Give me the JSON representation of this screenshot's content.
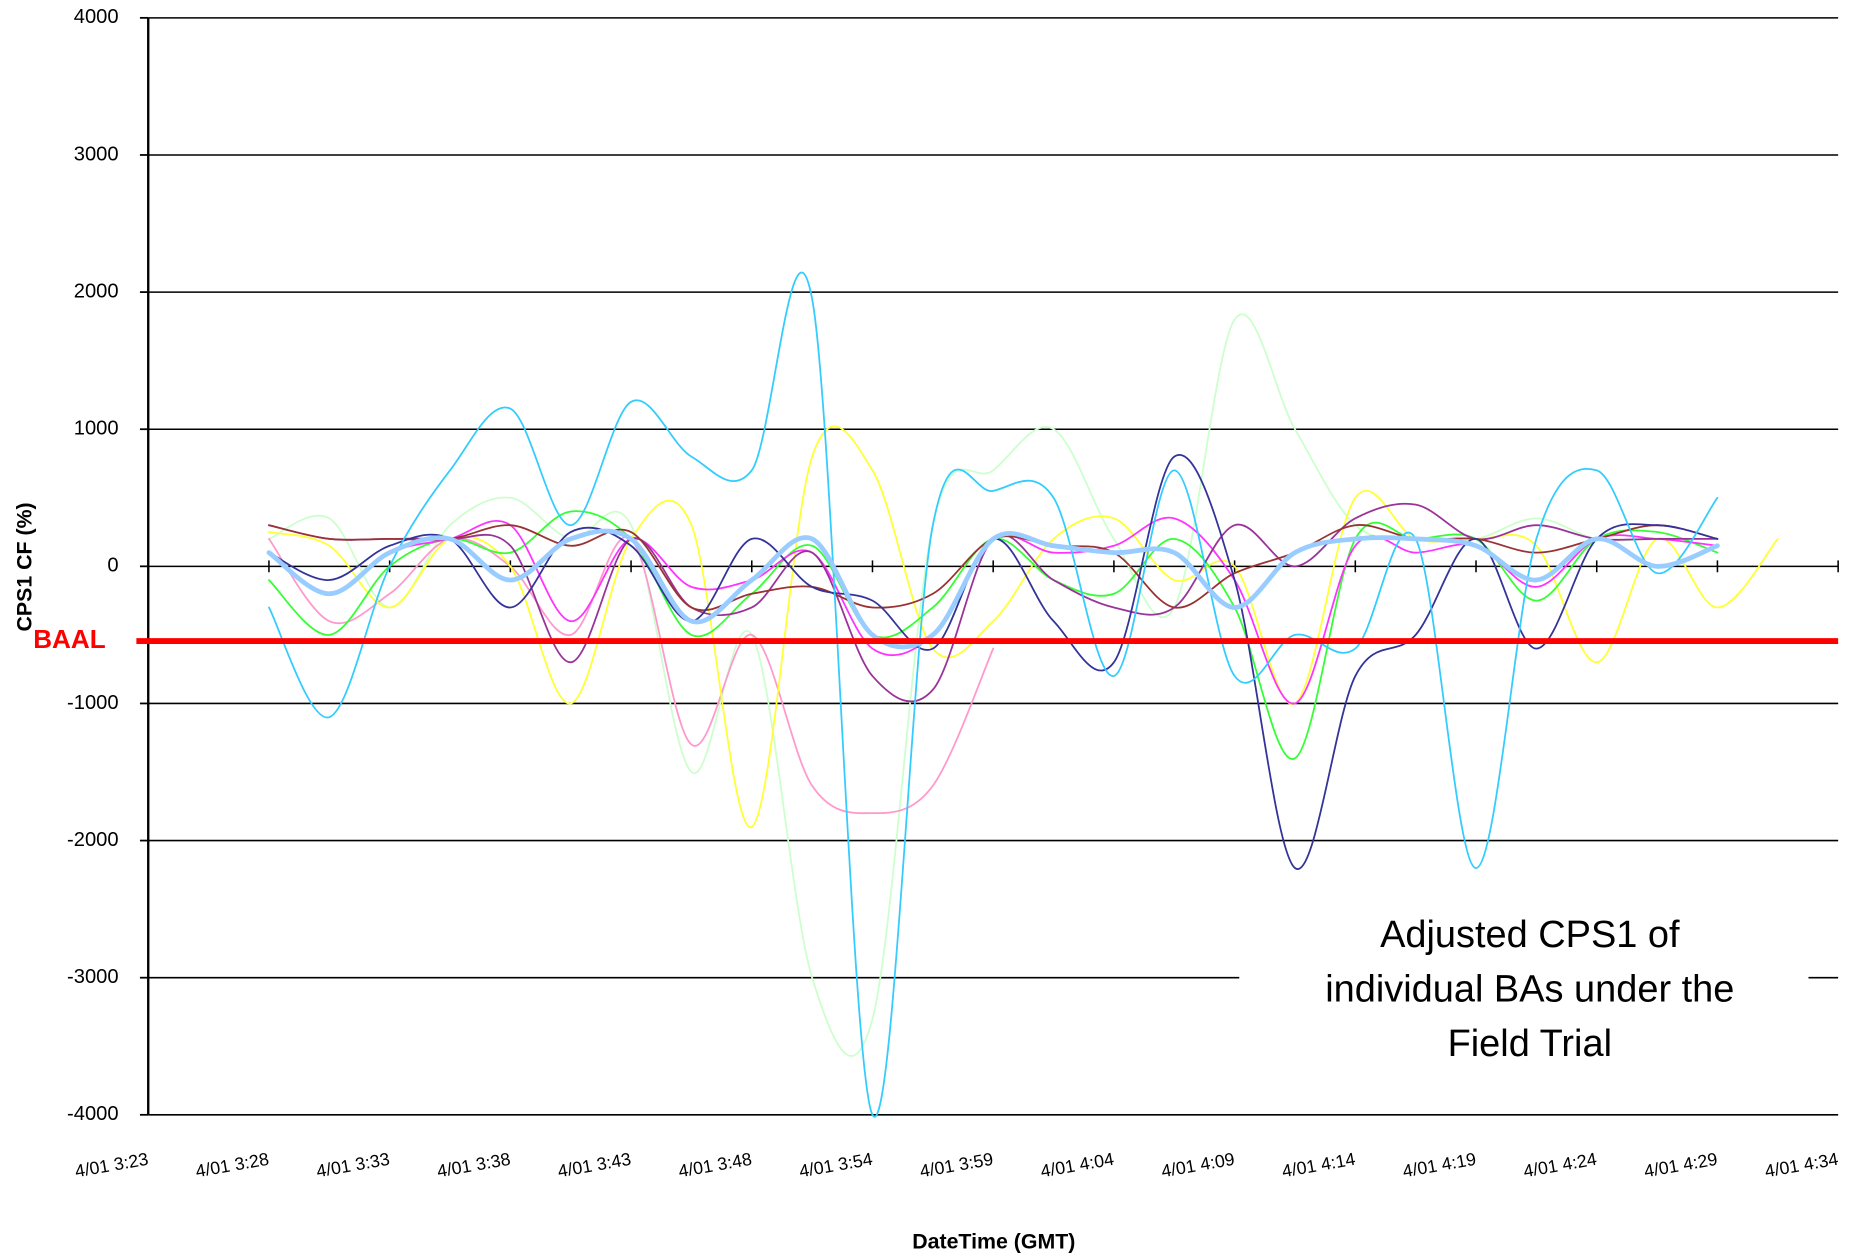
{
  "chart_data": {
    "type": "line",
    "x_label": "DateTime (GMT)",
    "y_label": "CPS1 CF (%)",
    "categories": [
      "4/01 3:23",
      null,
      "4/01 3:28",
      null,
      "4/01 3:33",
      null,
      "4/01 3:38",
      null,
      "4/01 3:43",
      null,
      "4/01 3:48",
      null,
      "4/01 3:54",
      null,
      "4/01 3:59",
      null,
      "4/01 4:04",
      null,
      "4/01 4:09",
      null,
      "4/01 4:14",
      null,
      "4/01 4:19",
      null,
      "4/01 4:24",
      null,
      "4/01 4:29",
      null,
      "4/01 4:34"
    ],
    "ylim": [
      -4000,
      4000
    ],
    "yticks": [
      -4000,
      -3000,
      -2000,
      -1000,
      0,
      1000,
      2000,
      3000,
      4000
    ],
    "grid": true,
    "series": [
      {
        "color": "#ccffcc",
        "width": 1.5,
        "values": [
          null,
          null,
          200,
          350,
          -300,
          300,
          500,
          200,
          300,
          -1500,
          -500,
          -3000,
          -3300,
          300,
          700,
          1000,
          200,
          -300,
          1800,
          1000,
          300,
          200,
          200,
          350,
          200,
          200,
          200,
          null,
          null
        ]
      },
      {
        "color": "#ff99cc",
        "width": 1.5,
        "values": [
          null,
          null,
          200,
          -400,
          -200,
          200,
          0,
          -500,
          200,
          -1300,
          -500,
          -1600,
          -1800,
          -1600,
          -600,
          null,
          null,
          null,
          null,
          null,
          null,
          null,
          null,
          null,
          null,
          null,
          null,
          null,
          null
        ]
      },
      {
        "color": "#ffff33",
        "width": 1.5,
        "values": [
          null,
          null,
          250,
          150,
          -300,
          200,
          0,
          -1000,
          200,
          300,
          -1900,
          800,
          700,
          -600,
          -400,
          200,
          350,
          -100,
          0,
          -1000,
          500,
          200,
          200,
          150,
          -700,
          200,
          -300,
          200,
          null
        ]
      },
      {
        "color": "#33ff33",
        "width": 1.5,
        "values": [
          null,
          null,
          -100,
          -500,
          0,
          200,
          100,
          400,
          200,
          -500,
          -200,
          150,
          -500,
          -300,
          200,
          -100,
          -200,
          200,
          -300,
          -1400,
          200,
          200,
          200,
          -250,
          200,
          250,
          100,
          null,
          null
        ]
      },
      {
        "color": "#ff33ff",
        "width": 1.5,
        "values": [
          null,
          null,
          100,
          -200,
          100,
          200,
          300,
          -400,
          200,
          -150,
          -100,
          100,
          -600,
          -500,
          200,
          100,
          150,
          350,
          -100,
          -1000,
          150,
          100,
          150,
          -150,
          200,
          200,
          150,
          null,
          null
        ]
      },
      {
        "color": "#993399",
        "width": 1.5,
        "values": [
          null,
          null,
          300,
          200,
          200,
          200,
          150,
          -700,
          200,
          -300,
          -300,
          100,
          -800,
          -900,
          200,
          -100,
          -300,
          -300,
          300,
          0,
          350,
          450,
          200,
          300,
          200,
          200,
          200,
          null,
          null
        ]
      },
      {
        "color": "#993333",
        "width": 1.5,
        "values": [
          null,
          null,
          300,
          200,
          200,
          200,
          300,
          150,
          250,
          -300,
          -200,
          -150,
          -300,
          -200,
          200,
          150,
          100,
          -300,
          -50,
          100,
          300,
          200,
          200,
          100,
          200,
          300,
          200,
          null,
          null
        ]
      },
      {
        "color": "#333399",
        "width": 1.5,
        "values": [
          null,
          null,
          100,
          -100,
          150,
          200,
          -300,
          250,
          150,
          -400,
          200,
          -150,
          -250,
          -600,
          200,
          -400,
          -700,
          800,
          -100,
          -2200,
          -800,
          -500,
          200,
          -600,
          200,
          300,
          200,
          null,
          null
        ]
      },
      {
        "color": "#33ccff",
        "width": 1.5,
        "values": [
          null,
          null,
          -300,
          -1100,
          0,
          700,
          1150,
          300,
          1200,
          800,
          700,
          1950,
          -4000,
          300,
          550,
          500,
          -800,
          700,
          -800,
          -500,
          -600,
          200,
          -2200,
          200,
          700,
          -50,
          500,
          null,
          null
        ]
      },
      {
        "color": "#99ccff",
        "width": 4,
        "values": [
          null,
          null,
          100,
          -200,
          100,
          200,
          -100,
          200,
          200,
          -400,
          -100,
          200,
          -500,
          -500,
          200,
          150,
          100,
          100,
          -300,
          100,
          200,
          200,
          150,
          -100,
          200,
          0,
          150,
          null,
          null
        ]
      }
    ],
    "threshold": {
      "label": "BAAL",
      "value": -545,
      "color": "#ff0000"
    },
    "annotation": "Adjusted CPS1 of individual BAs under the Field Trial"
  }
}
